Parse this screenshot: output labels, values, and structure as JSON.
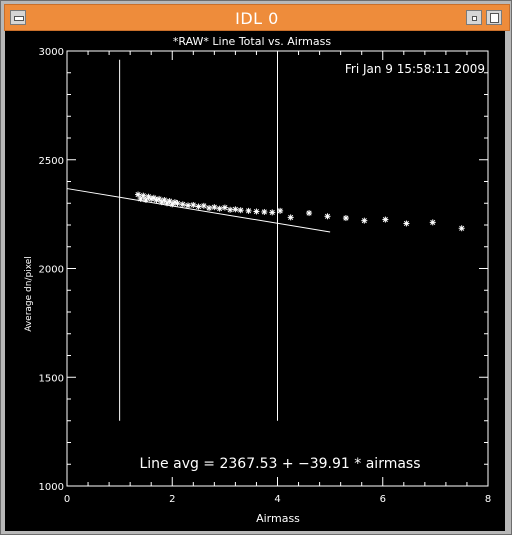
{
  "window": {
    "title": "IDL 0"
  },
  "chart_data": {
    "type": "scatter",
    "title": "*RAW* Line Total vs. Airmass",
    "timestamp": "Fri Jan  9 15:58:11 2009",
    "xlabel": "Airmass",
    "ylabel": "Average dn/pixel",
    "xlim": [
      0,
      8
    ],
    "ylim": [
      1000,
      3000
    ],
    "xticks": [
      "0",
      "2",
      "4",
      "6",
      "8"
    ],
    "yticks": [
      "1000",
      "1500",
      "2000",
      "2500",
      "3000"
    ],
    "annotation": "Line avg = 2367.53 + −39.91 * airmass",
    "fit": {
      "intercept": 2367.53,
      "slope": -39.91,
      "x_range": [
        0,
        5
      ]
    },
    "vlines": [
      1,
      4
    ],
    "vline_ymax": 2960,
    "series": [
      {
        "x": [
          1.35,
          1.4,
          1.45,
          1.5,
          1.55,
          1.6,
          1.65,
          1.7,
          1.75,
          1.8,
          1.85,
          1.9,
          1.95,
          2.0,
          2.05,
          2.1,
          2.2,
          2.3,
          2.4,
          2.5,
          2.6,
          2.7,
          2.8,
          2.9,
          3.0,
          3.1,
          3.2,
          3.3,
          3.45,
          3.6,
          3.75,
          3.9,
          4.05,
          4.25,
          4.6,
          4.95,
          5.3,
          5.65,
          6.05,
          6.45,
          6.95,
          7.5
        ],
        "y": [
          2340,
          2320,
          2335,
          2315,
          2330,
          2320,
          2325,
          2315,
          2320,
          2305,
          2315,
          2300,
          2310,
          2295,
          2305,
          2300,
          2295,
          2290,
          2292,
          2285,
          2288,
          2278,
          2282,
          2275,
          2280,
          2270,
          2272,
          2268,
          2265,
          2262,
          2260,
          2258,
          2265,
          2235,
          2255,
          2240,
          2232,
          2220,
          2225,
          2207,
          2212,
          2185
        ]
      }
    ]
  }
}
